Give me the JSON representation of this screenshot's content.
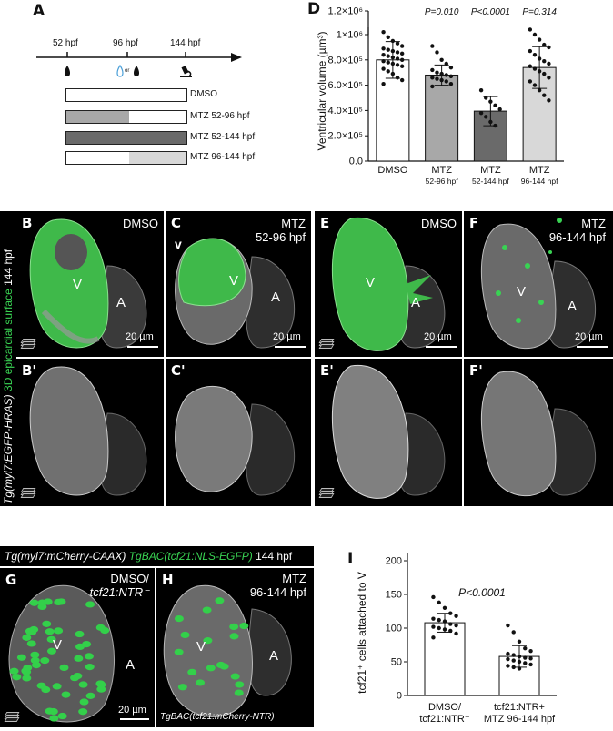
{
  "panel_letters": {
    "A": "A",
    "D": "D",
    "B": "B",
    "C": "C",
    "E": "E",
    "F": "F",
    "Bp": "B'",
    "Cp": "C'",
    "Ep": "E'",
    "Fp": "F'",
    "G": "G",
    "H": "H",
    "I": "I"
  },
  "schematic": {
    "timepoints": [
      "52 hpf",
      "96 hpf",
      "144 hpf"
    ],
    "or_label": "or",
    "conditions": [
      "DMSO",
      "MTZ 52-96 hpf",
      "MTZ 52-144 hpf",
      "MTZ 96-144 hpf"
    ]
  },
  "micro_labels": {
    "row_side_label_1": "Tg(myl7:EGFP-HRAS)",
    "row_side_label_2": "3D epicardial surface",
    "row_side_label_3": "144 hpf",
    "B_cond": "DMSO",
    "C_cond_1": "MTZ",
    "C_cond_2": "52-96 hpf",
    "E_cond": "DMSO",
    "F_cond_1": "MTZ",
    "F_cond_2": "96-144 hpf",
    "V": "V",
    "A": "A",
    "v_mark": "v",
    "scale": "20 µm"
  },
  "gh_labels": {
    "header_part1": "Tg(myl7:mCherry-CAAX)",
    "header_part2": "TgBAC(tcf21:NLS-EGFP)",
    "header_part3": "144 hpf",
    "G_cond_1": "DMSO/",
    "G_cond_2": "tcf21:NTR⁻",
    "H_cond_1": "MTZ",
    "H_cond_2": "96-144 hpf",
    "H_footer": "TgBAC(tcf21:mCherry-NTR)",
    "V": "V",
    "A": "A",
    "scale": "20 µm"
  },
  "chart_data": [
    {
      "type": "bar",
      "panel": "D",
      "ylabel": "Ventricular volume (µm³)",
      "categories": [
        "DMSO",
        "MTZ 52-96 hpf",
        "MTZ 52-144 hpf",
        "MTZ 96-144 hpf"
      ],
      "category_line1": [
        "DMSO",
        "MTZ",
        "MTZ",
        "MTZ"
      ],
      "category_line2": [
        "",
        "52-96 hpf",
        "52-144 hpf",
        "96-144 hpf"
      ],
      "values": [
        800000,
        680000,
        395000,
        740000
      ],
      "errors": [
        145000,
        80000,
        115000,
        165000
      ],
      "bar_colors": [
        "#ffffff",
        "#a8a8a8",
        "#6a6a6a",
        "#d8d8d8"
      ],
      "pvalues": [
        "",
        "P=0.010",
        "P<0.0001",
        "P=0.314"
      ],
      "ylim": [
        0,
        1000000
      ],
      "yticks": [
        0,
        200000,
        400000,
        600000,
        800000,
        1000000
      ],
      "ytick_labels": [
        "0.0",
        "2.0×10⁵",
        "4.0×10⁵",
        "6.0×10⁵",
        "8.0×10⁵",
        "1×10⁶"
      ],
      "top_label": "1.2×10⁶",
      "points": [
        [
          1020000,
          980000,
          950000,
          930000,
          910000,
          890000,
          880000,
          870000,
          860000,
          850000,
          840000,
          830000,
          820000,
          810000,
          800000,
          790000,
          780000,
          770000,
          760000,
          750000,
          730000,
          710000,
          690000,
          660000,
          640000,
          610000
        ],
        [
          910000,
          860000,
          800000,
          770000,
          740000,
          720000,
          700000,
          690000,
          680000,
          670000,
          660000,
          650000,
          640000,
          630000,
          610000,
          590000
        ],
        [
          560000,
          500000,
          470000,
          440000,
          410000,
          380000,
          350000,
          310000,
          280000
        ],
        [
          1040000,
          1000000,
          960000,
          920000,
          900000,
          870000,
          840000,
          810000,
          790000,
          770000,
          750000,
          730000,
          710000,
          690000,
          660000,
          630000,
          600000,
          560000,
          520000,
          480000
        ]
      ],
      "grid": false
    },
    {
      "type": "bar",
      "panel": "I",
      "ylabel": "tcf21⁺ cells attached to V",
      "categories": [
        "DMSO/ tcf21:NTR⁻",
        "tcf21:NTR+ MTZ 96-144 hpf"
      ],
      "category_line1": [
        "DMSO/",
        "tcf21:NTR+"
      ],
      "category_line2": [
        "tcf21:NTR⁻",
        "MTZ 96-144 hpf"
      ],
      "values": [
        108,
        58
      ],
      "errors": [
        14,
        16
      ],
      "bar_colors": [
        "#ffffff",
        "#ffffff"
      ],
      "pvalue": "P<0.0001",
      "ylim": [
        0,
        200
      ],
      "yticks": [
        0,
        50,
        100,
        150,
        200
      ],
      "ytick_labels": [
        "0",
        "50",
        "100",
        "150",
        "200"
      ],
      "points": [
        [
          146,
          138,
          130,
          122,
          118,
          114,
          112,
          110,
          106,
          104,
          102,
          100,
          98,
          96,
          92,
          86
        ],
        [
          104,
          94,
          80,
          70,
          66,
          62,
          60,
          58,
          56,
          55,
          54,
          52,
          50,
          48,
          46,
          44,
          42,
          40
        ]
      ],
      "grid": false
    }
  ]
}
